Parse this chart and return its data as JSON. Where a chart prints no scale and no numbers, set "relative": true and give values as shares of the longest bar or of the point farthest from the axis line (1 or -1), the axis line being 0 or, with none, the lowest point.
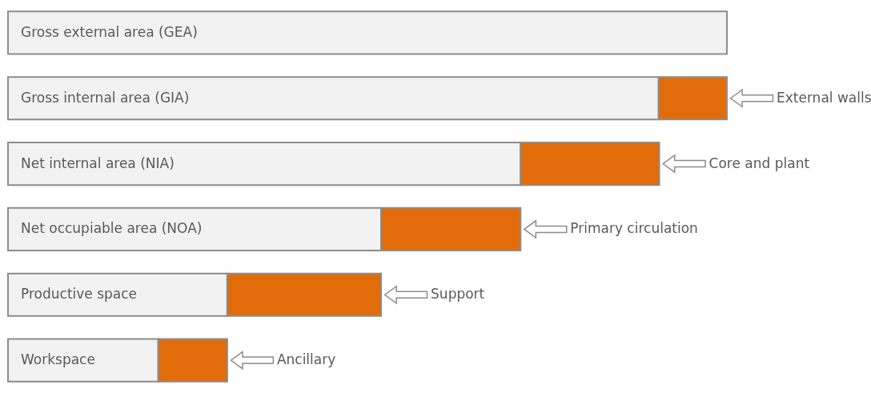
{
  "chart_data": {
    "type": "bar",
    "orientation": "horizontal",
    "stacked": true,
    "relative": true,
    "categories": [
      "Gross external area (GEA)",
      "Gross internal area (GIA)",
      "Net internal area (NIA)",
      "Net occupiable area (NOA)",
      "Productive space",
      "Workspace"
    ],
    "series": [
      {
        "color": "#f2f2f2",
        "values": [
          1.0,
          0.905,
          0.713,
          0.519,
          0.305,
          0.209
        ]
      },
      {
        "color": "#e36c0a",
        "values": [
          null,
          0.095,
          0.193,
          0.194,
          0.214,
          0.096
        ]
      }
    ],
    "annotations": [
      "External walls",
      "Core and plant",
      "Primary circulation",
      "Support",
      "Ancillary"
    ]
  }
}
